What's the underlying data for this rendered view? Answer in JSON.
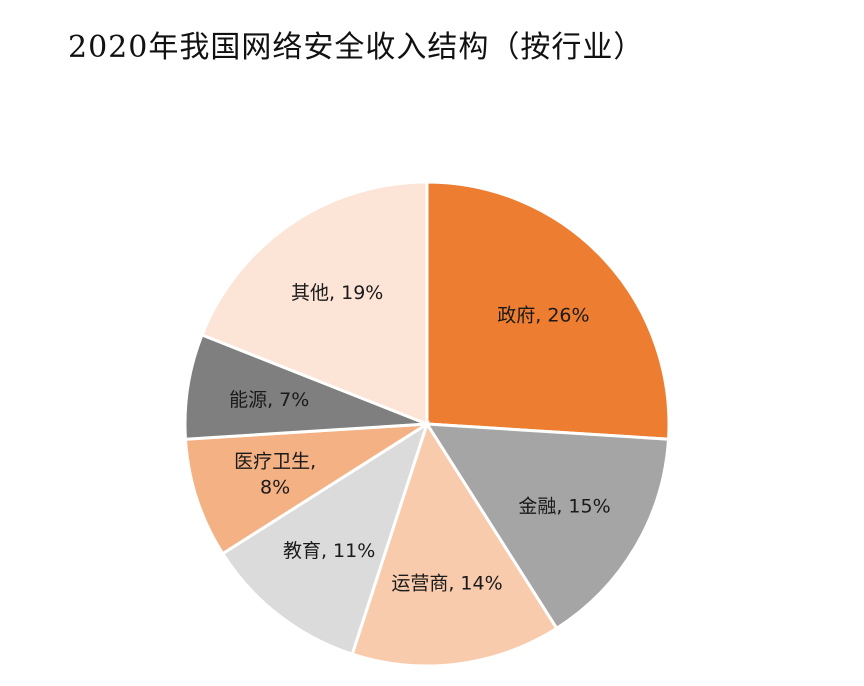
{
  "title": "2020年我国网络安全收入结构（按行业）",
  "chart_data": {
    "type": "pie",
    "title": "2020年我国网络安全收入结构（按行业）",
    "start": "12 o'clock",
    "direction": "clockwise",
    "slices": [
      {
        "name": "政府",
        "value": 26,
        "label_lines": [
          "政府, 26%"
        ],
        "color": "#ED7D31"
      },
      {
        "name": "金融",
        "value": 15,
        "label_lines": [
          "金融, 15%"
        ],
        "color": "#A5A5A5"
      },
      {
        "name": "运营商",
        "value": 14,
        "label_lines": [
          "运营商, 14%"
        ],
        "color": "#F8CBAD"
      },
      {
        "name": "教育",
        "value": 11,
        "label_lines": [
          "教育, 11%"
        ],
        "color": "#DBDBDB"
      },
      {
        "name": "医疗卫生",
        "value": 8,
        "label_lines": [
          "医疗卫生,",
          "8%"
        ],
        "color": "#F4B183"
      },
      {
        "name": "能源",
        "value": 7,
        "label_lines": [
          "能源, 7%"
        ],
        "color": "#7F7F7F"
      },
      {
        "name": "其他",
        "value": 19,
        "label_lines": [
          "其他, 19%"
        ],
        "color": "#FCE4D6"
      }
    ]
  }
}
